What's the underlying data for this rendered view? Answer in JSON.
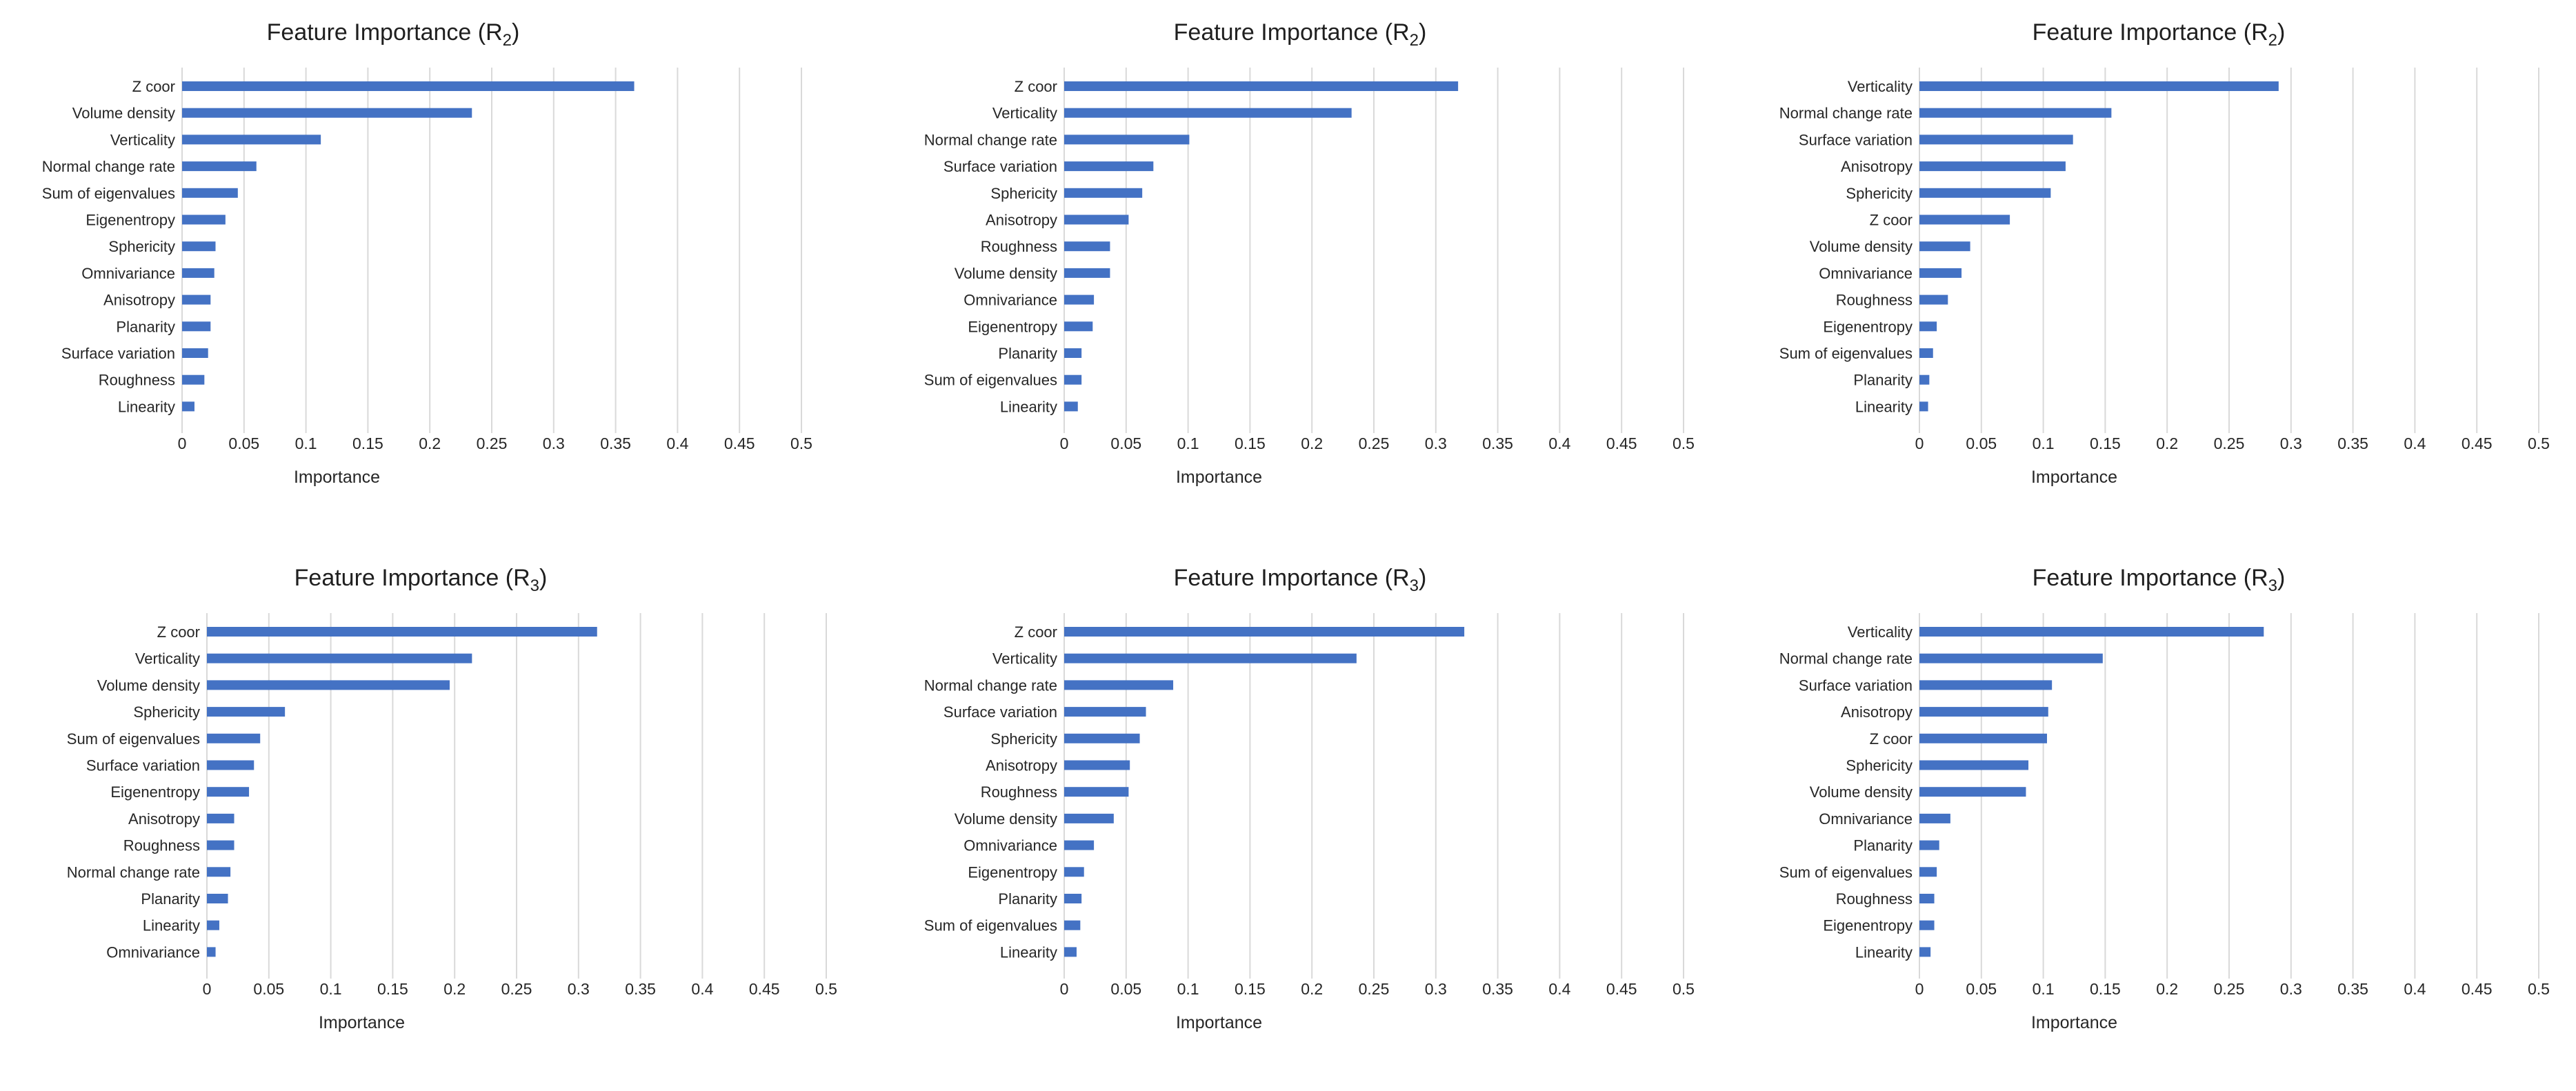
{
  "colors": {
    "bar": "#4472c4",
    "grid": "#d9d9d9",
    "text": "#262626"
  },
  "chart_data": [
    {
      "type": "bar",
      "orientation": "horizontal",
      "title": "Feature Importance (R2)",
      "title_main": "Feature Importance (R",
      "title_sub": "2",
      "title_end": ")",
      "xlabel": "Importance",
      "ylabel": "",
      "xlim": [
        0,
        0.5
      ],
      "ticks": [
        "0",
        "0.05",
        "0.1",
        "0.15",
        "0.2",
        "0.25",
        "0.3",
        "0.35",
        "0.4",
        "0.45",
        "0.5"
      ],
      "categories": [
        "Z coor",
        "Volume density",
        "Verticality",
        "Normal change rate",
        "Sum of eigenvalues",
        "Eigenentropy",
        "Sphericity",
        "Omnivariance",
        "Anisotropy",
        "Planarity",
        "Surface variation",
        "Roughness",
        "Linearity"
      ],
      "values": [
        0.365,
        0.234,
        0.112,
        0.06,
        0.045,
        0.035,
        0.027,
        0.026,
        0.023,
        0.023,
        0.021,
        0.018,
        0.01
      ],
      "grid": true
    },
    {
      "type": "bar",
      "orientation": "horizontal",
      "title": "Feature Importance (R2)",
      "title_main": "Feature Importance (R",
      "title_sub": "2",
      "title_end": ")",
      "xlabel": "Importance",
      "ylabel": "",
      "xlim": [
        0,
        0.5
      ],
      "ticks": [
        "0",
        "0.05",
        "0.1",
        "0.15",
        "0.2",
        "0.25",
        "0.3",
        "0.35",
        "0.4",
        "0.45",
        "0.5"
      ],
      "categories": [
        "Z coor",
        "Verticality",
        "Normal change rate",
        "Surface variation",
        "Sphericity",
        "Anisotropy",
        "Roughness",
        "Volume density",
        "Omnivariance",
        "Eigenentropy",
        "Planarity",
        "Sum of eigenvalues",
        "Linearity"
      ],
      "values": [
        0.318,
        0.232,
        0.101,
        0.072,
        0.063,
        0.052,
        0.037,
        0.037,
        0.024,
        0.023,
        0.014,
        0.014,
        0.011
      ],
      "grid": true
    },
    {
      "type": "bar",
      "orientation": "horizontal",
      "title": "Feature Importance (R2)",
      "title_main": "Feature Importance (R",
      "title_sub": "2",
      "title_end": ")",
      "xlabel": "Importance",
      "ylabel": "",
      "xlim": [
        0,
        0.5
      ],
      "ticks": [
        "0",
        "0.05",
        "0.1",
        "0.15",
        "0.2",
        "0.25",
        "0.3",
        "0.35",
        "0.4",
        "0.45",
        "0.5"
      ],
      "categories": [
        "Verticality",
        "Normal change rate",
        "Surface variation",
        "Anisotropy",
        "Sphericity",
        "Z coor",
        "Volume density",
        "Omnivariance",
        "Roughness",
        "Eigenentropy",
        "Sum of eigenvalues",
        "Planarity",
        "Linearity"
      ],
      "values": [
        0.29,
        0.155,
        0.124,
        0.118,
        0.106,
        0.073,
        0.041,
        0.034,
        0.023,
        0.014,
        0.011,
        0.008,
        0.007
      ],
      "grid": true
    },
    {
      "type": "bar",
      "orientation": "horizontal",
      "title": "Feature Importance (R3)",
      "title_main": "Feature Importance (R",
      "title_sub": "3",
      "title_end": ")",
      "xlabel": "Importance",
      "ylabel": "",
      "xlim": [
        0,
        0.5
      ],
      "ticks": [
        "0",
        "0.05",
        "0.1",
        "0.15",
        "0.2",
        "0.25",
        "0.3",
        "0.35",
        "0.4",
        "0.45",
        "0.5"
      ],
      "categories": [
        "Z coor",
        "Verticality",
        "Volume density",
        "Sphericity",
        "Sum of eigenvalues",
        "Surface variation",
        "Eigenentropy",
        "Anisotropy",
        "Roughness",
        "Normal change rate",
        "Planarity",
        "Linearity",
        "Omnivariance"
      ],
      "values": [
        0.315,
        0.214,
        0.196,
        0.063,
        0.043,
        0.038,
        0.034,
        0.022,
        0.022,
        0.019,
        0.017,
        0.01,
        0.007
      ],
      "grid": true
    },
    {
      "type": "bar",
      "orientation": "horizontal",
      "title": "Feature Importance (R3)",
      "title_main": "Feature Importance (R",
      "title_sub": "3",
      "title_end": ")",
      "xlabel": "Importance",
      "ylabel": "",
      "xlim": [
        0,
        0.5
      ],
      "ticks": [
        "0",
        "0.05",
        "0.1",
        "0.15",
        "0.2",
        "0.25",
        "0.3",
        "0.35",
        "0.4",
        "0.45",
        "0.5"
      ],
      "categories": [
        "Z coor",
        "Verticality",
        "Normal change rate",
        "Surface variation",
        "Sphericity",
        "Anisotropy",
        "Roughness",
        "Volume density",
        "Omnivariance",
        "Eigenentropy",
        "Planarity",
        "Sum of eigenvalues",
        "Linearity"
      ],
      "values": [
        0.323,
        0.236,
        0.088,
        0.066,
        0.061,
        0.053,
        0.052,
        0.04,
        0.024,
        0.016,
        0.014,
        0.013,
        0.01
      ],
      "grid": true
    },
    {
      "type": "bar",
      "orientation": "horizontal",
      "title": "Feature Importance (R3)",
      "title_main": "Feature Importance (R",
      "title_sub": "3",
      "title_end": ")",
      "xlabel": "Importance",
      "ylabel": "",
      "xlim": [
        0,
        0.5
      ],
      "ticks": [
        "0",
        "0.05",
        "0.1",
        "0.15",
        "0.2",
        "0.25",
        "0.3",
        "0.35",
        "0.4",
        "0.45",
        "0.5"
      ],
      "categories": [
        "Verticality",
        "Normal change rate",
        "Surface variation",
        "Anisotropy",
        "Z coor",
        "Sphericity",
        "Volume density",
        "Omnivariance",
        "Planarity",
        "Sum of eigenvalues",
        "Roughness",
        "Eigenentropy",
        "Linearity"
      ],
      "values": [
        0.278,
        0.148,
        0.107,
        0.104,
        0.103,
        0.088,
        0.086,
        0.025,
        0.016,
        0.014,
        0.012,
        0.012,
        0.009
      ],
      "grid": true
    }
  ]
}
